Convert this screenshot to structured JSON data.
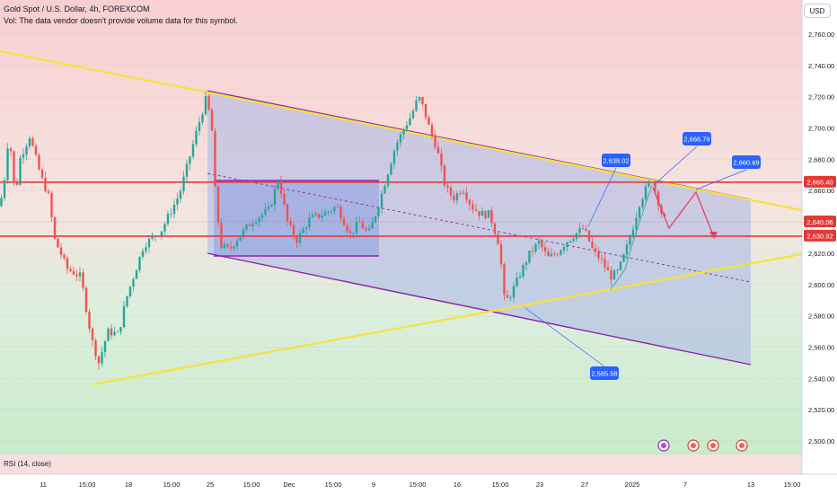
{
  "header": {
    "title": "Gold Spot / U.S. Dollar, 4h, FOREXCOM",
    "volume_note": "Vol: The data vendor doesn't provide volume data for this symbol."
  },
  "currency_button": "USD",
  "rsi_label": "RSI (14, close)",
  "colors": {
    "up": "#26a69a",
    "down": "#ef5350",
    "yellow_line": "#f7e13c",
    "purple_line": "#8e24aa",
    "red_line": "#e53935",
    "channel_fill": "#a9b7e6",
    "callout": "#2962ff"
  },
  "chart_data": {
    "type": "candlestick",
    "symbol": "Gold Spot / U.S. Dollar",
    "timeframe": "4h",
    "ylim": [
      2490,
      2770
    ],
    "y_ticks": [
      "2,760.00",
      "2,740.00",
      "2,720.00",
      "2,700.00",
      "2,680.00",
      "2,660.00",
      "2,640.00",
      "2,620.00",
      "2,600.00",
      "2,580.00",
      "2,560.00",
      "2,540.00",
      "2,520.00",
      "2,500.00"
    ],
    "x_ticks": [
      "11",
      "15:00",
      "18",
      "15:00",
      "25",
      "15:00",
      "Dec",
      "15:00",
      "9",
      "15:00",
      "16",
      "15:00",
      "23",
      "27",
      "2025",
      "7",
      "13",
      "15:00"
    ],
    "price_labels": [
      {
        "text": "2,665.40",
        "value": 2665.4
      },
      {
        "text": "2,640.06",
        "value": 2640.06
      },
      {
        "text": "2,630.92",
        "value": 2630.92
      }
    ],
    "horizontal_levels": [
      2665.4,
      2630.92
    ],
    "callouts": [
      {
        "text": "2,638.02",
        "value": 2638.02
      },
      {
        "text": "2,666.79",
        "value": 2666.79
      },
      {
        "text": "2,660.69",
        "value": 2660.69
      },
      {
        "text": "2,585.58",
        "value": 2585.58
      }
    ],
    "path": [
      [
        0,
        2650
      ],
      [
        5,
        2668
      ],
      [
        10,
        2698
      ],
      [
        17,
        2655
      ],
      [
        22,
        2680
      ],
      [
        33,
        2695
      ],
      [
        45,
        2670
      ],
      [
        55,
        2655
      ],
      [
        60,
        2630
      ],
      [
        75,
        2610
      ],
      [
        90,
        2605
      ],
      [
        102,
        2565
      ],
      [
        110,
        2550
      ],
      [
        120,
        2570
      ],
      [
        132,
        2568
      ],
      [
        140,
        2590
      ],
      [
        160,
        2625
      ],
      [
        180,
        2635
      ],
      [
        200,
        2658
      ],
      [
        220,
        2700
      ],
      [
        230,
        2720
      ],
      [
        236,
        2698
      ],
      [
        240,
        2655
      ],
      [
        246,
        2625
      ],
      [
        255,
        2622
      ],
      [
        265,
        2630
      ],
      [
        280,
        2640
      ],
      [
        300,
        2648
      ],
      [
        310,
        2668
      ],
      [
        320,
        2640
      ],
      [
        330,
        2628
      ],
      [
        345,
        2642
      ],
      [
        360,
        2645
      ],
      [
        375,
        2650
      ],
      [
        390,
        2632
      ],
      [
        400,
        2640
      ],
      [
        410,
        2632
      ],
      [
        420,
        2648
      ],
      [
        430,
        2668
      ],
      [
        440,
        2688
      ],
      [
        450,
        2700
      ],
      [
        458,
        2708
      ],
      [
        466,
        2720
      ],
      [
        472,
        2712
      ],
      [
        478,
        2700
      ],
      [
        486,
        2688
      ],
      [
        496,
        2662
      ],
      [
        505,
        2655
      ],
      [
        515,
        2662
      ],
      [
        525,
        2650
      ],
      [
        535,
        2645
      ],
      [
        545,
        2645
      ],
      [
        556,
        2625
      ],
      [
        562,
        2588
      ],
      [
        570,
        2595
      ],
      [
        580,
        2608
      ],
      [
        590,
        2620
      ],
      [
        600,
        2627
      ],
      [
        610,
        2617
      ],
      [
        620,
        2620
      ],
      [
        630,
        2627
      ],
      [
        640,
        2632
      ],
      [
        650,
        2636
      ],
      [
        660,
        2622
      ],
      [
        670,
        2615
      ],
      [
        680,
        2605
      ],
      [
        688,
        2608
      ],
      [
        696,
        2620
      ],
      [
        704,
        2635
      ],
      [
        712,
        2652
      ],
      [
        720,
        2662
      ],
      [
        726,
        2667
      ],
      [
        732,
        2655
      ],
      [
        738,
        2643
      ],
      [
        742,
        2640
      ]
    ]
  }
}
